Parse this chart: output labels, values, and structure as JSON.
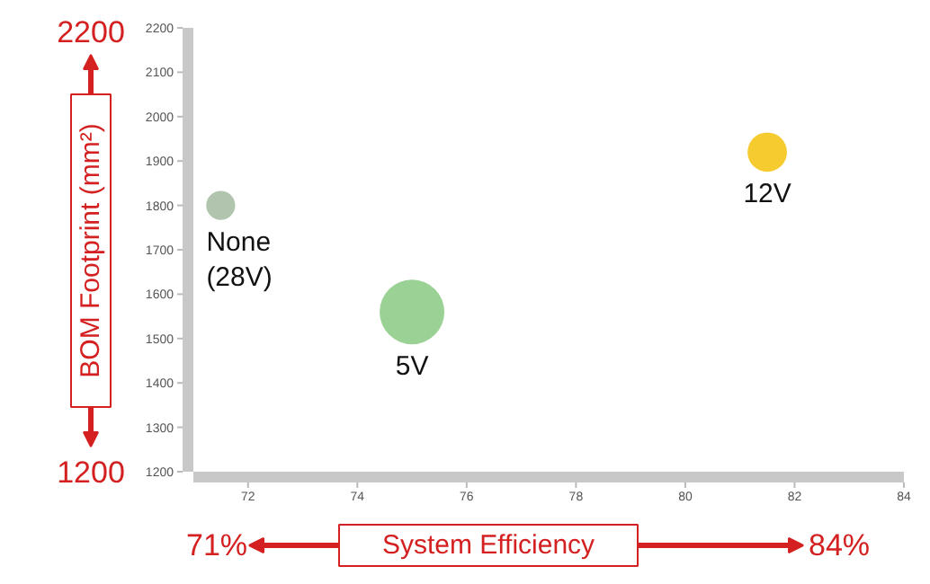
{
  "chart_data": {
    "type": "bubble",
    "xlabel": "System Efficiency",
    "ylabel": "BOM Footprint (mm²)",
    "xlim": [
      71,
      84
    ],
    "ylim": [
      1200,
      2200
    ],
    "xticks": [
      72,
      74,
      76,
      78,
      80,
      82,
      84
    ],
    "yticks": [
      1200,
      1300,
      1400,
      1500,
      1600,
      1700,
      1800,
      1900,
      2000,
      2100,
      2200
    ],
    "series": [
      {
        "name": "None\n(28V)",
        "color": "#a9bfa5",
        "x": [
          71.5
        ],
        "values": [
          1800
        ],
        "sizes": [
          0.2
        ]
      },
      {
        "name": "5V",
        "color": "#8fcc8a",
        "x": [
          75
        ],
        "values": [
          1560
        ],
        "sizes": [
          1
        ]
      },
      {
        "name": "12V",
        "color": "#f5c518",
        "x": [
          81.5
        ],
        "values": [
          1920
        ],
        "sizes": [
          0.37
        ]
      }
    ],
    "annotations": [
      "2200",
      "1200",
      "71%",
      "84%"
    ],
    "grid": false
  }
}
